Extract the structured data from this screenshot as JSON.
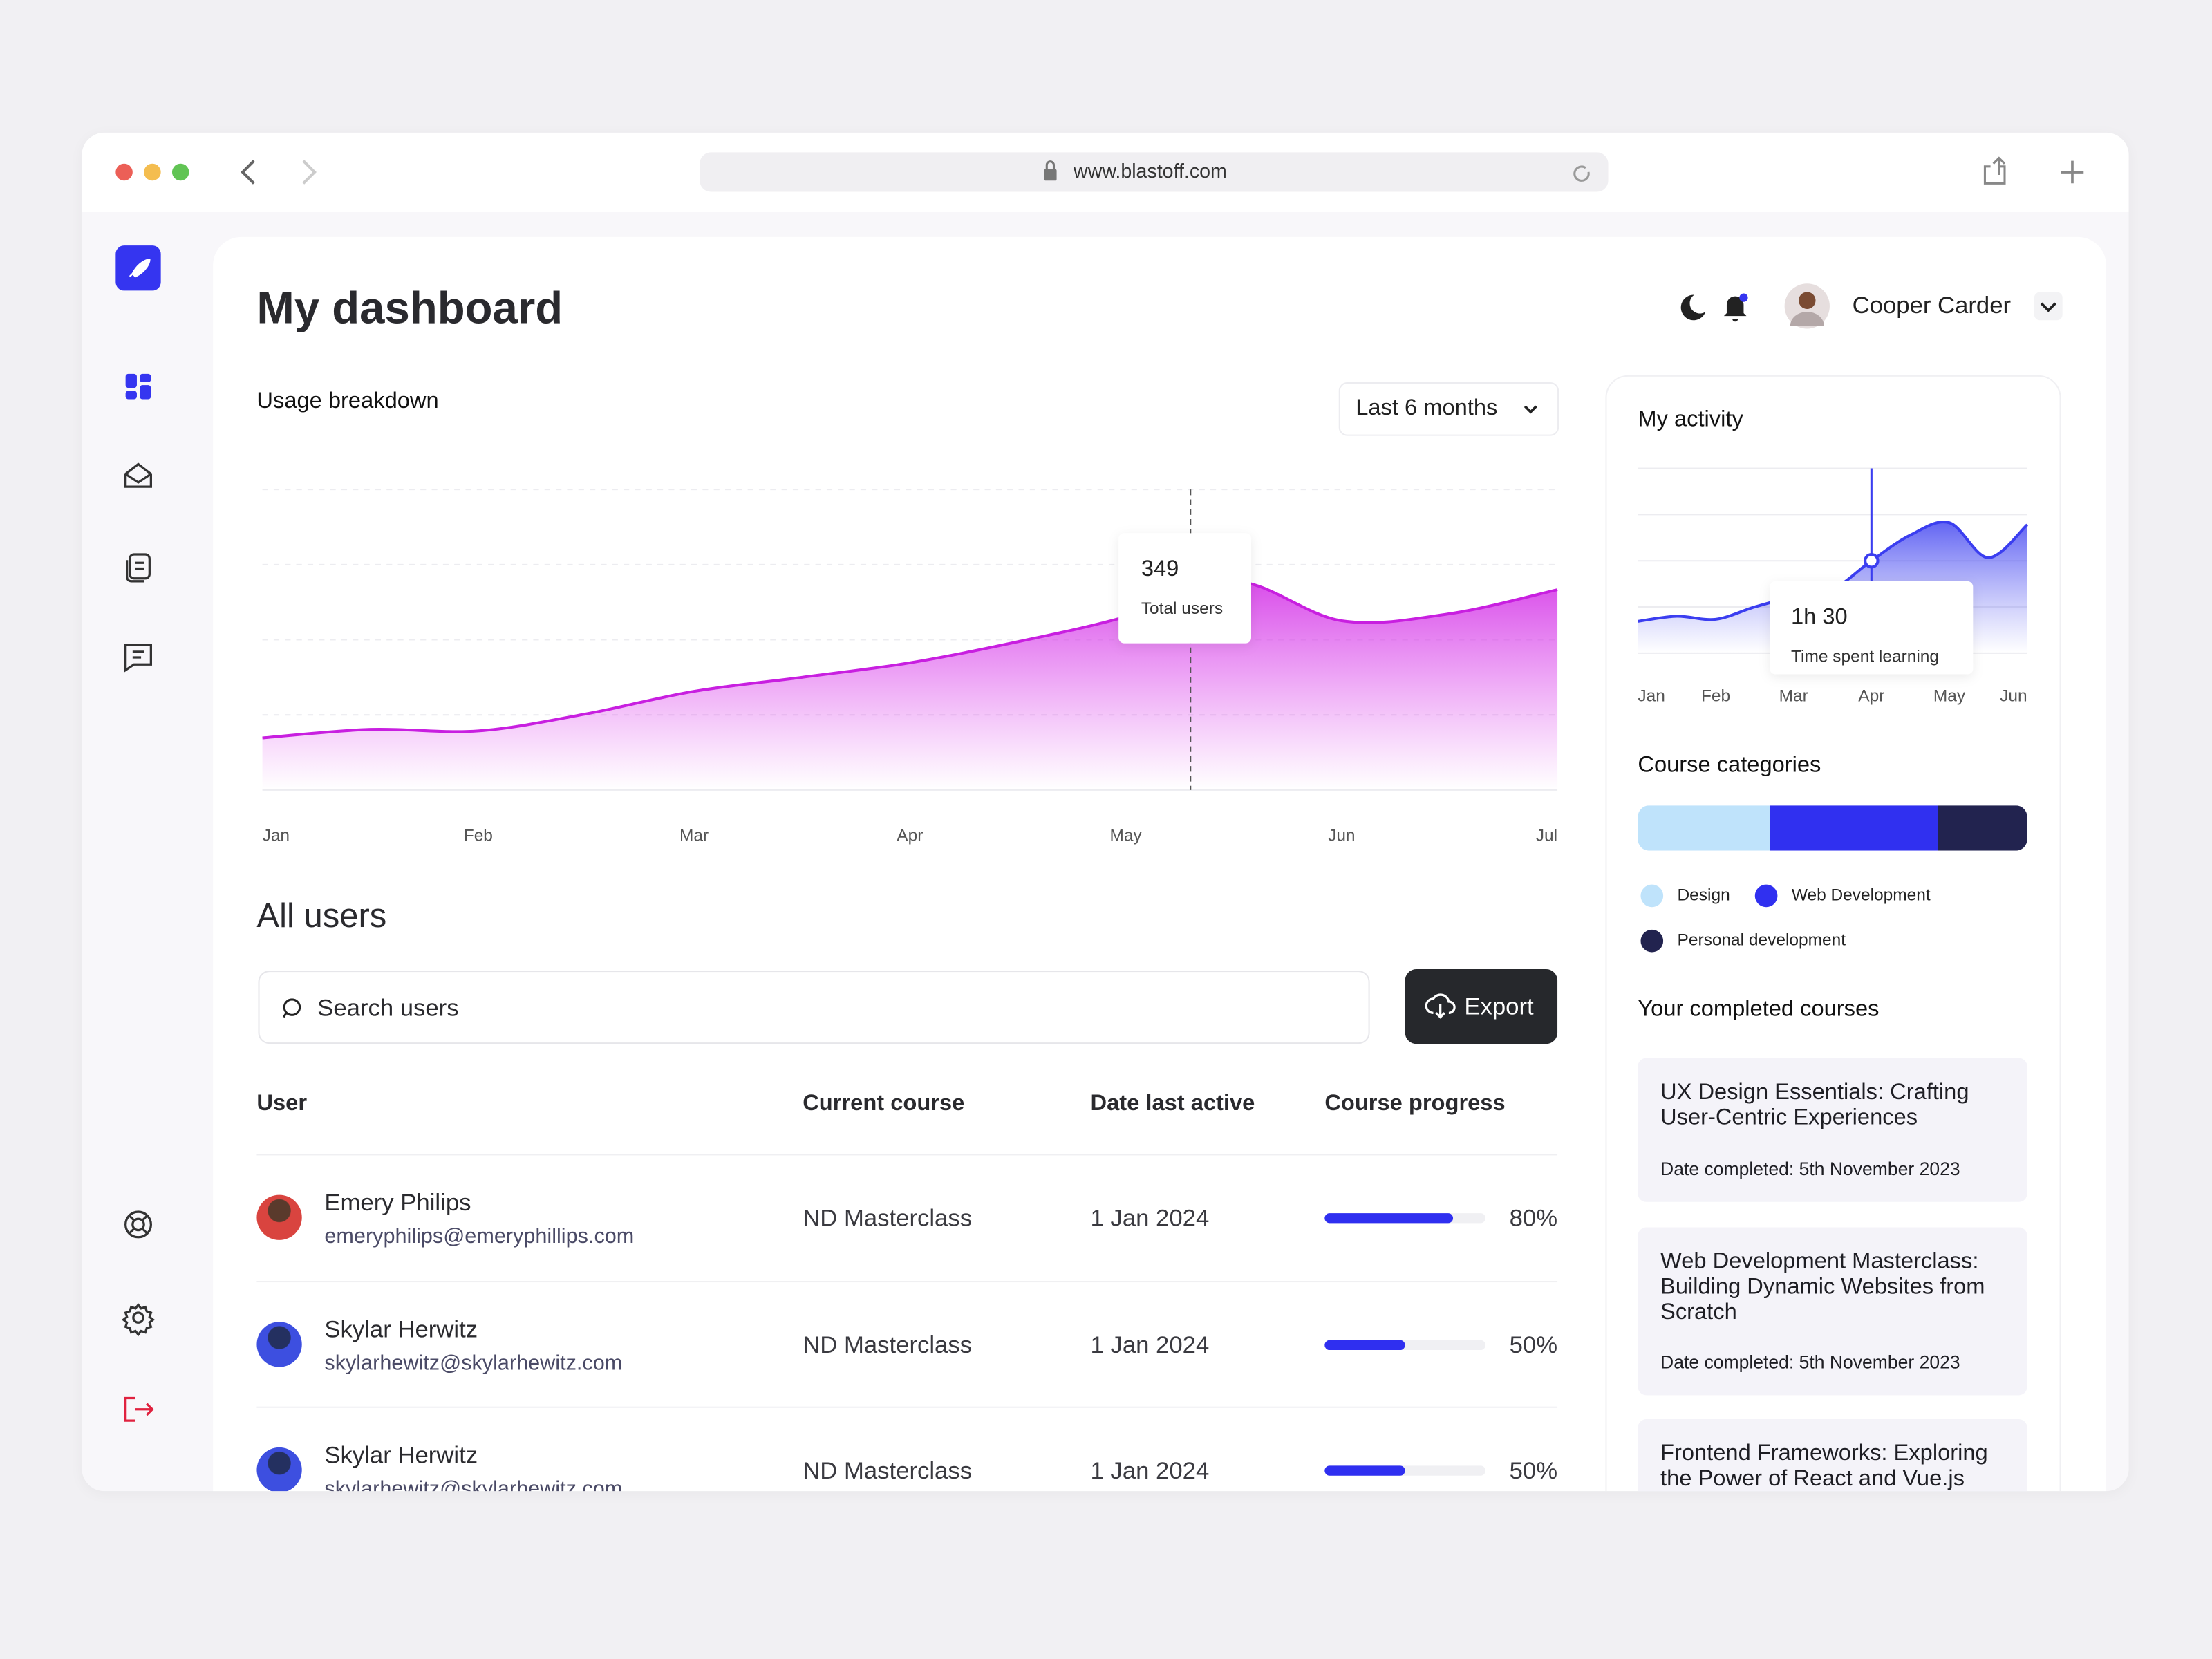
{
  "browser": {
    "url": "www.blastoff.com"
  },
  "header": {
    "title": "My dashboard",
    "user_name": "Cooper Carder"
  },
  "controls": {
    "period": "Last 6 months"
  },
  "chart_data": [
    {
      "type": "area",
      "title": "Usage breakdown",
      "color": "#c81fe0",
      "x": [
        0,
        0.5,
        1,
        1.5,
        2,
        2.5,
        3,
        3.5,
        4,
        4.5,
        5,
        5.5,
        6
      ],
      "values": [
        104,
        121,
        118,
        152,
        197,
        225,
        254,
        296,
        346,
        417,
        338,
        352,
        400
      ],
      "xlim": [
        0,
        6
      ],
      "xticks": [
        {
          "value": 0,
          "label": "Jan"
        },
        {
          "value": 1,
          "label": "Feb"
        },
        {
          "value": 2,
          "label": "Mar"
        },
        {
          "value": 3,
          "label": "Apr"
        },
        {
          "value": 4,
          "label": "May"
        },
        {
          "value": 5,
          "label": "Jun"
        },
        {
          "value": 6,
          "label": "Jul"
        }
      ],
      "ylim": [
        0,
        600
      ],
      "yticks": [
        0,
        150,
        300,
        450,
        600
      ],
      "grid": true,
      "tooltip": {
        "x": 4.3,
        "value": 349,
        "label": "Total users"
      }
    },
    {
      "type": "area",
      "title": "My activity",
      "color": "#3b3ef0",
      "x": [
        0,
        0.5,
        1,
        1.5,
        2,
        2.5,
        3,
        3.5,
        4,
        4.5,
        5
      ],
      "values": [
        31,
        36,
        33,
        45,
        55,
        62,
        90,
        115,
        127,
        93,
        125
      ],
      "xlim": [
        0,
        5
      ],
      "xticks": [
        {
          "value": 0,
          "label": "Jan"
        },
        {
          "value": 1,
          "label": "Feb"
        },
        {
          "value": 2,
          "label": "Mar"
        },
        {
          "value": 3,
          "label": "Apr"
        },
        {
          "value": 4,
          "label": "May"
        },
        {
          "value": 5,
          "label": "Jun"
        }
      ],
      "ylim": [
        0,
        180
      ],
      "yticks": [
        0,
        45,
        90,
        135,
        180
      ],
      "grid": true,
      "tooltip": {
        "x": 3,
        "value": 90,
        "value_label": "1h 30",
        "label": "Time spent learning"
      }
    },
    {
      "type": "stacked-bar",
      "title": "Course categories",
      "xlim": [
        0,
        100
      ],
      "series": [
        {
          "name": "Design",
          "color": "#bfe3fb",
          "values": [
            34
          ]
        },
        {
          "name": "Web Development",
          "color": "#3030f0",
          "values": [
            43
          ]
        },
        {
          "name": "Personal development",
          "color": "#22234f",
          "values": [
            23
          ]
        }
      ]
    }
  ],
  "users": {
    "title": "All users",
    "search_placeholder": "Search users",
    "export": "Export",
    "columns": [
      "User",
      "Current course",
      "Date last active",
      "Course progress"
    ],
    "rows": [
      {
        "name": "Emery Philips",
        "email": "emeryphilips@emeryphillips.com",
        "course": "ND Masterclass",
        "date": "1 Jan 2024",
        "progress": {
          "value": 80,
          "label": "80%"
        }
      },
      {
        "name": "Skylar Herwitz",
        "email": "skylarhewitz@skylarhewitz.com",
        "course": "ND Masterclass",
        "date": "1 Jan 2024",
        "progress": {
          "value": 50,
          "label": "50%"
        }
      },
      {
        "name": "Skylar Herwitz",
        "email": "skylarhewitz@skylarhewitz.com",
        "course": "ND Masterclass",
        "date": "1 Jan 2024",
        "progress": {
          "value": 50,
          "label": "50%"
        }
      }
    ]
  },
  "completed": {
    "title": "Your completed courses",
    "items": [
      {
        "title": "UX Design Essentials: Crafting User-Centric Experiences",
        "date": "Date completed: 5th November 2023"
      },
      {
        "title": "Web Development Masterclass: Building Dynamic Websites from Scratch",
        "date": "Date completed: 5th November 2023"
      },
      {
        "title": "Frontend Frameworks: Exploring the Power of React and Vue.js"
      }
    ]
  }
}
